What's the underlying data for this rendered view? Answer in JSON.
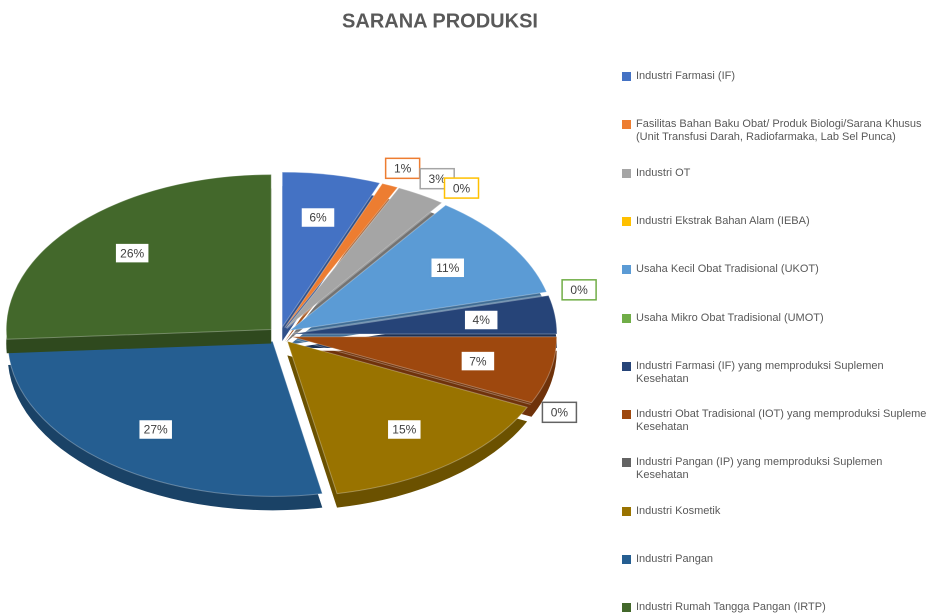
{
  "chart_data": {
    "type": "pie",
    "title": "SARANA PRODUKSI",
    "categories": [
      "Industri Farmasi (IF)",
      "Fasilitas Bahan Baku Obat/ Produk Biologi/Sarana Khusus (Unit Transfusi Darah, Radiofarmaka, Lab Sel Punca)",
      "Industri OT",
      "Industri Ekstrak Bahan Alam (IEBA)",
      "Usaha Kecil Obat Tradisional (UKOT)",
      "Usaha Mikro Obat Tradisional (UMOT)",
      "Industri Farmasi (IF) yang memproduksi Suplemen Kesehatan",
      "Industri Obat Tradisional (IOT) yang memproduksi Suplemen Kesehatan",
      "Industri Pangan (IP) yang memproduksi Suplemen Kesehatan",
      "Industri Kosmetik",
      "Industri Pangan",
      "Industri Rumah Tangga Pangan (IRTP)"
    ],
    "values": [
      6,
      1,
      3,
      0,
      11,
      0,
      4,
      7,
      0,
      15,
      27,
      26
    ],
    "value_labels": [
      "6%",
      "1%",
      "3%",
      "0%",
      "11%",
      "0%",
      "4%",
      "7%",
      "0%",
      "15%",
      "27%",
      "26%"
    ],
    "colors": [
      "#4472c4",
      "#ed7d31",
      "#a5a5a5",
      "#ffc000",
      "#5b9bd5",
      "#70ad47",
      "#264478",
      "#9e480e",
      "#636363",
      "#997300",
      "#255e91",
      "#43682b"
    ],
    "legend": "right"
  }
}
